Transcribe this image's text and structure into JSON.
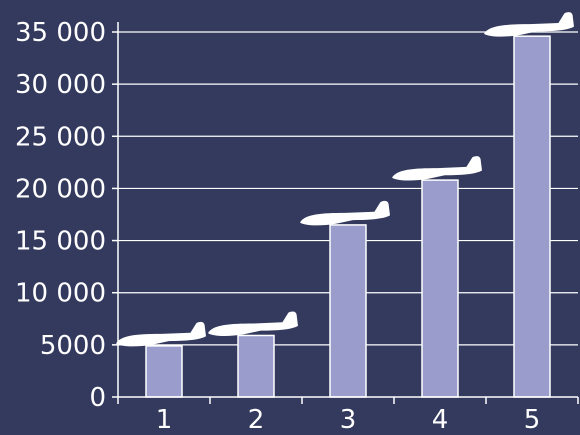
{
  "chart_data": {
    "type": "bar",
    "categories": [
      "1",
      "2",
      "3",
      "4",
      "5"
    ],
    "values": [
      4900,
      5900,
      16500,
      20800,
      34600
    ],
    "ylim": [
      0,
      35000
    ],
    "yticks": [
      0,
      5000,
      10000,
      15000,
      20000,
      25000,
      30000,
      35000
    ],
    "ytick_labels": [
      "0",
      "5000",
      "10 000",
      "15 000",
      "20 000",
      "25 000",
      "30 000",
      "35 000"
    ],
    "grid": true,
    "title": "",
    "xlabel": "",
    "ylabel": "",
    "marker_icon": "airplane-icon",
    "colors": {
      "background": "#333a5e",
      "bar": "#9a9ccc",
      "grid": "#ffffff",
      "text": "#ffffff"
    }
  }
}
